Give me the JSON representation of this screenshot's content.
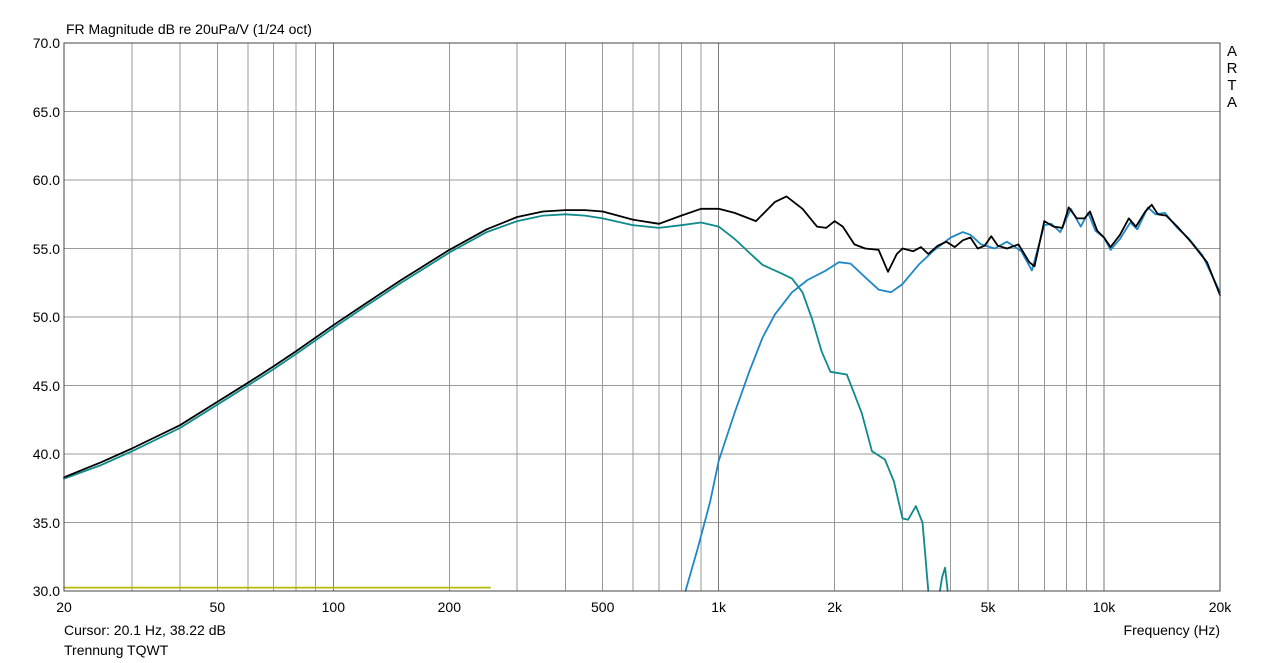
{
  "chart_data": {
    "type": "line",
    "title": "FR Magnitude dB re 20uPa/V (1/24 oct)",
    "xlabel": "Frequency (Hz)",
    "ylabel": "",
    "x_scale": "log",
    "xlim": [
      20,
      20000
    ],
    "ylim": [
      30,
      70
    ],
    "y_ticks": [
      "30.0",
      "35.0",
      "40.0",
      "45.0",
      "50.0",
      "55.0",
      "60.0",
      "65.0",
      "70.0"
    ],
    "x_ticks": [
      {
        "value": 20,
        "label": "20"
      },
      {
        "value": 50,
        "label": "50"
      },
      {
        "value": 100,
        "label": "100"
      },
      {
        "value": 200,
        "label": "200"
      },
      {
        "value": 500,
        "label": "500"
      },
      {
        "value": 1000,
        "label": "1k"
      },
      {
        "value": 2000,
        "label": "2k"
      },
      {
        "value": 5000,
        "label": "5k"
      },
      {
        "value": 10000,
        "label": "10k"
      },
      {
        "value": 20000,
        "label": "20k"
      }
    ],
    "grid": true,
    "series": [
      {
        "color": "#0f8a8a",
        "points": [
          [
            20,
            38.2
          ],
          [
            25,
            39.2
          ],
          [
            30,
            40.2
          ],
          [
            40,
            41.9
          ],
          [
            50,
            43.6
          ],
          [
            60,
            45.0
          ],
          [
            70,
            46.2
          ],
          [
            80,
            47.3
          ],
          [
            100,
            49.2
          ],
          [
            120,
            50.7
          ],
          [
            150,
            52.5
          ],
          [
            200,
            54.7
          ],
          [
            250,
            56.2
          ],
          [
            300,
            57.0
          ],
          [
            350,
            57.4
          ],
          [
            400,
            57.5
          ],
          [
            450,
            57.4
          ],
          [
            500,
            57.2
          ],
          [
            600,
            56.7
          ],
          [
            700,
            56.5
          ],
          [
            800,
            56.7
          ],
          [
            900,
            56.9
          ],
          [
            1000,
            56.6
          ],
          [
            1100,
            55.7
          ],
          [
            1200,
            54.7
          ],
          [
            1300,
            53.8
          ],
          [
            1450,
            53.2
          ],
          [
            1550,
            52.8
          ],
          [
            1650,
            51.8
          ],
          [
            1750,
            49.8
          ],
          [
            1850,
            47.5
          ],
          [
            1950,
            46.0
          ],
          [
            2150,
            45.8
          ],
          [
            2350,
            43.0
          ],
          [
            2500,
            40.2
          ],
          [
            2700,
            39.6
          ],
          [
            2850,
            38.0
          ],
          [
            3000,
            35.3
          ],
          [
            3100,
            35.2
          ],
          [
            3250,
            36.2
          ],
          [
            3380,
            35.0
          ],
          [
            3500,
            30.0
          ]
        ]
      },
      {
        "color": "#0f8a8a",
        "points": [
          [
            3750,
            30.0
          ],
          [
            3800,
            31.0
          ],
          [
            3870,
            31.7
          ],
          [
            3930,
            30.0
          ]
        ]
      },
      {
        "color": "#1e87c8",
        "points": [
          [
            820,
            30.0
          ],
          [
            880,
            33.0
          ],
          [
            950,
            36.5
          ],
          [
            1000,
            39.5
          ],
          [
            1100,
            43.0
          ],
          [
            1200,
            46.0
          ],
          [
            1300,
            48.5
          ],
          [
            1400,
            50.2
          ],
          [
            1550,
            51.8
          ],
          [
            1700,
            52.7
          ],
          [
            1900,
            53.4
          ],
          [
            2050,
            54.0
          ],
          [
            2200,
            53.9
          ],
          [
            2400,
            52.9
          ],
          [
            2600,
            52.0
          ],
          [
            2800,
            51.8
          ],
          [
            3000,
            52.4
          ],
          [
            3300,
            53.8
          ],
          [
            3600,
            54.8
          ],
          [
            4000,
            55.8
          ],
          [
            4300,
            56.2
          ],
          [
            4500,
            56.0
          ],
          [
            4800,
            55.3
          ],
          [
            5200,
            55.0
          ],
          [
            5600,
            55.5
          ],
          [
            6100,
            54.8
          ],
          [
            6500,
            53.4
          ],
          [
            7000,
            56.7
          ],
          [
            7300,
            56.8
          ],
          [
            7700,
            56.2
          ],
          [
            8200,
            57.9
          ],
          [
            8700,
            56.6
          ],
          [
            9100,
            57.6
          ],
          [
            9500,
            56.3
          ],
          [
            10000,
            55.8
          ],
          [
            10400,
            54.9
          ],
          [
            11000,
            55.7
          ],
          [
            11700,
            56.9
          ],
          [
            12200,
            56.4
          ],
          [
            13000,
            58.0
          ],
          [
            13600,
            57.5
          ],
          [
            14400,
            57.6
          ],
          [
            15500,
            56.5
          ],
          [
            16500,
            55.8
          ],
          [
            18000,
            54.5
          ],
          [
            20000,
            51.8
          ]
        ]
      },
      {
        "color": "#000000",
        "points": [
          [
            20,
            38.3
          ],
          [
            25,
            39.4
          ],
          [
            30,
            40.4
          ],
          [
            40,
            42.1
          ],
          [
            50,
            43.8
          ],
          [
            60,
            45.2
          ],
          [
            70,
            46.4
          ],
          [
            80,
            47.5
          ],
          [
            100,
            49.4
          ],
          [
            120,
            50.9
          ],
          [
            150,
            52.7
          ],
          [
            200,
            54.9
          ],
          [
            250,
            56.4
          ],
          [
            300,
            57.3
          ],
          [
            350,
            57.7
          ],
          [
            400,
            57.8
          ],
          [
            450,
            57.8
          ],
          [
            500,
            57.7
          ],
          [
            600,
            57.1
          ],
          [
            700,
            56.8
          ],
          [
            800,
            57.4
          ],
          [
            900,
            57.9
          ],
          [
            1000,
            57.9
          ],
          [
            1100,
            57.6
          ],
          [
            1250,
            57.0
          ],
          [
            1400,
            58.4
          ],
          [
            1500,
            58.8
          ],
          [
            1650,
            57.9
          ],
          [
            1800,
            56.6
          ],
          [
            1900,
            56.5
          ],
          [
            2000,
            57.0
          ],
          [
            2100,
            56.6
          ],
          [
            2250,
            55.3
          ],
          [
            2400,
            55.0
          ],
          [
            2600,
            54.9
          ],
          [
            2750,
            53.3
          ],
          [
            2900,
            54.6
          ],
          [
            3000,
            55.0
          ],
          [
            3200,
            54.8
          ],
          [
            3350,
            55.1
          ],
          [
            3500,
            54.6
          ],
          [
            3700,
            55.2
          ],
          [
            3900,
            55.5
          ],
          [
            4100,
            55.1
          ],
          [
            4300,
            55.6
          ],
          [
            4500,
            55.8
          ],
          [
            4700,
            55.0
          ],
          [
            4900,
            55.2
          ],
          [
            5100,
            55.9
          ],
          [
            5300,
            55.2
          ],
          [
            5600,
            55.0
          ],
          [
            6000,
            55.3
          ],
          [
            6400,
            54.0
          ],
          [
            6600,
            53.7
          ],
          [
            7000,
            57.0
          ],
          [
            7400,
            56.6
          ],
          [
            7800,
            56.5
          ],
          [
            8100,
            58.0
          ],
          [
            8500,
            57.2
          ],
          [
            8900,
            57.2
          ],
          [
            9200,
            57.7
          ],
          [
            9600,
            56.3
          ],
          [
            10000,
            55.8
          ],
          [
            10400,
            55.1
          ],
          [
            11000,
            56.0
          ],
          [
            11600,
            57.2
          ],
          [
            12100,
            56.6
          ],
          [
            12800,
            57.7
          ],
          [
            13300,
            58.2
          ],
          [
            13800,
            57.5
          ],
          [
            14500,
            57.4
          ],
          [
            15500,
            56.6
          ],
          [
            16800,
            55.5
          ],
          [
            18500,
            54.0
          ],
          [
            20000,
            51.6
          ]
        ]
      },
      {
        "color": "#b7b70e",
        "points": [
          [
            20,
            30.25
          ],
          [
            255,
            30.25
          ]
        ]
      }
    ]
  },
  "brand_letters": [
    "A",
    "R",
    "T",
    "A"
  ],
  "cursor_text": "Cursor: 20.1 Hz, 38.22 dB",
  "subtitle": "Trennung TQWT",
  "colors": {
    "grid": "#9a9a9a",
    "grid_major": "#7a7a7a",
    "frame": "#444444",
    "background": "#ffffff"
  }
}
